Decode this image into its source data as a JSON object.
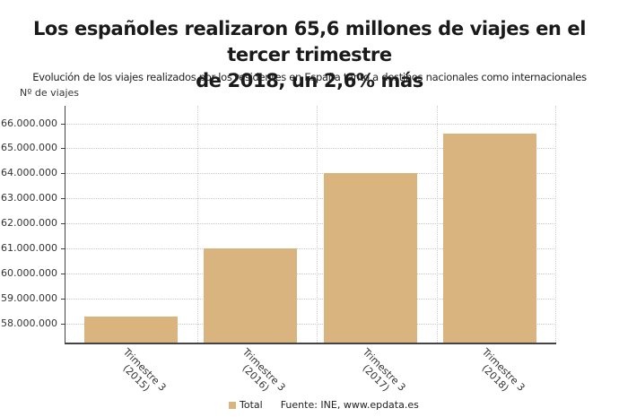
{
  "header": {
    "title_line1": "Los españoles realizaron 65,6 millones de viajes en el tercer trimestre",
    "title_line2": "de 2018, un 2,6% más",
    "subtitle": "Evolución de los viajes realizados por los residentes en España tanto a destinos nacionales como internacionales"
  },
  "axis": {
    "ylabel": "Nº de viajes",
    "yticks": [
      "66.000.000",
      "65.000.000",
      "64.000.000",
      "63.000.000",
      "62.000.000",
      "61.000.000",
      "60.000.000",
      "59.000.000",
      "58.000.000"
    ],
    "xticks": [
      "Trimestre 3\n(2015)",
      "Trimestre 3\n(2016)",
      "Trimestre 3\n(2017)",
      "Trimestre 3\n(2018)"
    ]
  },
  "legend": {
    "series_label": "Total",
    "source": "Fuente: INE, www.epdata.es"
  },
  "colors": {
    "bar": "#dab47f"
  },
  "chart_data": {
    "type": "bar",
    "title": "Los españoles realizaron 65,6 millones de viajes en el tercer trimestre de 2018, un 2,6% más",
    "subtitle": "Evolución de los viajes realizados por los residentes en España tanto a destinos nacionales como internacionales",
    "xlabel": "",
    "ylabel": "Nº de viajes",
    "categories": [
      "Trimestre 3 (2015)",
      "Trimestre 3 (2016)",
      "Trimestre 3 (2017)",
      "Trimestre 3 (2018)"
    ],
    "series": [
      {
        "name": "Total",
        "values": [
          58300000,
          61000000,
          64000000,
          65600000
        ]
      }
    ],
    "ylim": [
      57250000,
      66700000
    ],
    "yticks": [
      58000000,
      59000000,
      60000000,
      61000000,
      62000000,
      63000000,
      64000000,
      65000000,
      66000000
    ],
    "grid": true,
    "legend_position": "bottom",
    "source": "Fuente: INE, www.epdata.es"
  }
}
